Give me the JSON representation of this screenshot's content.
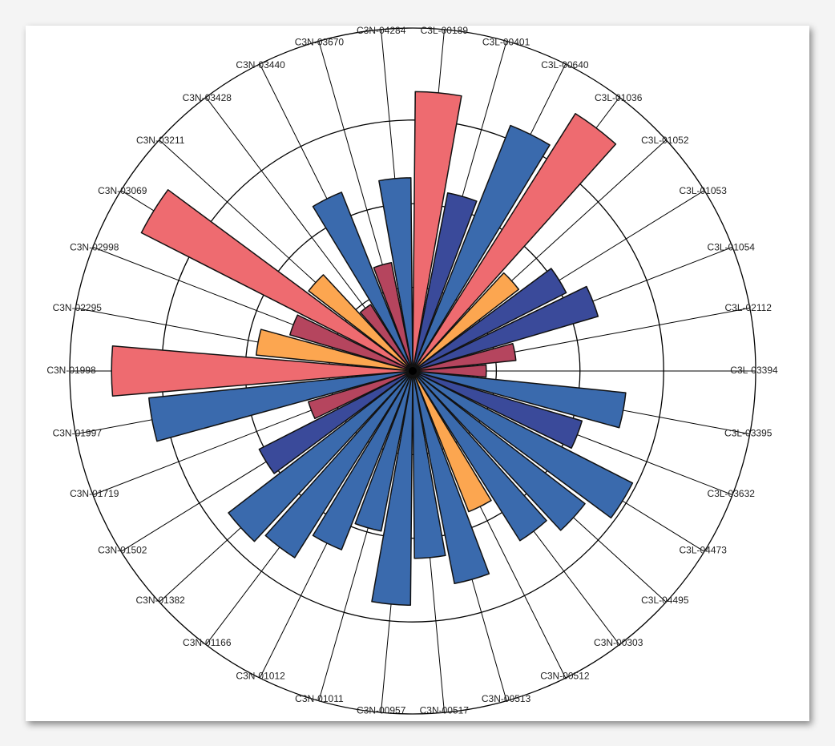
{
  "chart_data": {
    "type": "polar_bar",
    "categories": [
      "C3L-00189",
      "C3L-00401",
      "C3L-00640",
      "C3L-01036",
      "C3L-01052",
      "C3L-01053",
      "C3L-01054",
      "C3L-02112",
      "C3L-03394",
      "C3L-03395",
      "C3L-03632",
      "C3L-04473",
      "C3L-04495",
      "C3N-00303",
      "C3N-00512",
      "C3N-00513",
      "C3N-00517",
      "C3N-00957",
      "C3N-01011",
      "C3N-01012",
      "C3N-01166",
      "C3N-01382",
      "C3N-01502",
      "C3N-01719",
      "C3N-01997",
      "C3N-01998",
      "C3N-02295",
      "C3N-02998",
      "C3N-03069",
      "C3N-03211",
      "C3N-03428",
      "C3N-03440",
      "C3N-03670",
      "C3N-04284"
    ],
    "values": [
      3.34,
      2.17,
      3.16,
      3.64,
      1.6,
      2.06,
      2.31,
      1.24,
      0.88,
      2.56,
      2.11,
      2.95,
      2.6,
      2.4,
      1.81,
      2.59,
      2.24,
      2.8,
      1.95,
      2.3,
      2.64,
      2.78,
      2.06,
      1.3,
      3.17,
      3.6,
      1.88,
      1.53,
      3.64,
      1.57,
      0.94,
      2.3,
      1.32,
      2.31
    ],
    "colors": [
      "#ee6b70",
      "#3a4a9a",
      "#3a6aad",
      "#ee6b70",
      "#fca650",
      "#3a4a9a",
      "#3a4a9a",
      "#b5455e",
      "#b5455e",
      "#3a6aad",
      "#3a4a9a",
      "#3a6aad",
      "#3a6aad",
      "#3a6aad",
      "#fca650",
      "#3a6aad",
      "#3a6aad",
      "#3a6aad",
      "#3a6aad",
      "#3a6aad",
      "#3a6aad",
      "#3a6aad",
      "#3a4a9a",
      "#b5455e",
      "#3a6aad",
      "#ee6b70",
      "#fca650",
      "#b5455e",
      "#ee6b70",
      "#fca650",
      "#b5455e",
      "#3a6aad",
      "#b5455e",
      "#3a6aad"
    ],
    "ylim": [
      0,
      4.1
    ],
    "yticks": [
      1,
      2,
      3
    ],
    "grid": true
  }
}
